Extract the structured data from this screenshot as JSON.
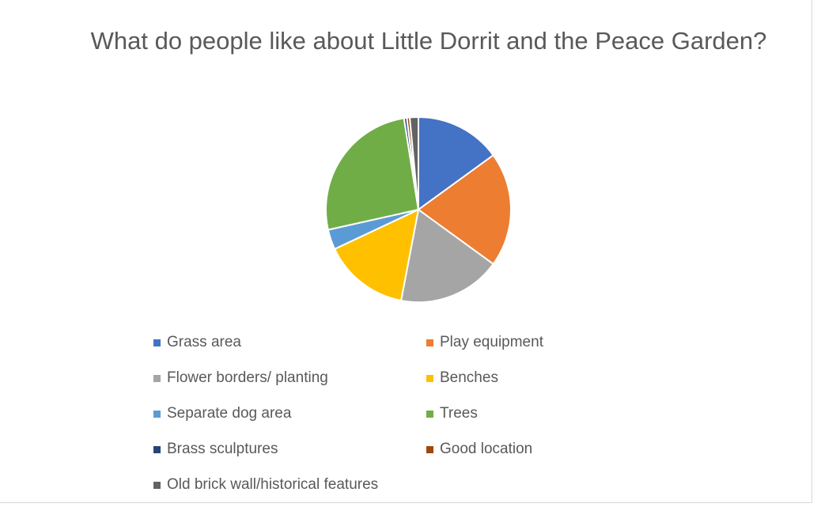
{
  "chart_data": {
    "type": "pie",
    "title": "What do people like about Little Dorrit and the Peace Garden?",
    "categories": [
      "Grass area",
      "Play equipment",
      "Flower borders/ planting",
      "Benches",
      "Separate dog area",
      "Trees",
      "Brass sculptures",
      "Good location",
      "Old brick wall/historical features"
    ],
    "values": [
      15,
      20,
      18,
      15,
      3.5,
      26,
      0.5,
      0.5,
      1.5
    ],
    "colors": [
      "#4472c4",
      "#ed7d31",
      "#a5a5a5",
      "#ffc000",
      "#5b9bd5",
      "#70ad47",
      "#264478",
      "#9e480e",
      "#636363"
    ],
    "legend": "bottom"
  }
}
